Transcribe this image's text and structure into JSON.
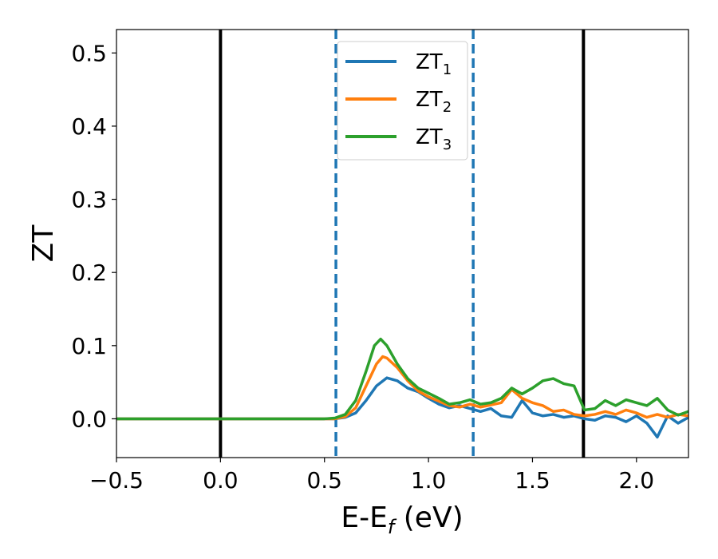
{
  "chart_data": {
    "type": "line",
    "xlabel": "E-E",
    "xlabel_sub": "f",
    "xlabel_unit": "(eV)",
    "ylabel": "ZT",
    "xlim": [
      -0.5,
      2.25
    ],
    "ylim": [
      -0.053,
      0.532
    ],
    "xticks": [
      -0.5,
      0.0,
      0.5,
      1.0,
      1.5,
      2.0
    ],
    "xtick_labels": [
      "−0.5",
      "0.0",
      "0.5",
      "1.0",
      "1.5",
      "2.0"
    ],
    "yticks": [
      0.0,
      0.1,
      0.2,
      0.3,
      0.4,
      0.5
    ],
    "ytick_labels": [
      "0.0",
      "0.1",
      "0.2",
      "0.3",
      "0.4",
      "0.5"
    ],
    "grid": false,
    "legend_position": "top-center",
    "vlines": [
      {
        "x": 0.0,
        "style": "solid",
        "color": "#000000"
      },
      {
        "x": 1.745,
        "style": "solid",
        "color": "#000000"
      },
      {
        "x": 0.555,
        "style": "dashed",
        "color": "#1f77b4"
      },
      {
        "x": 1.215,
        "style": "dashed",
        "color": "#1f77b4"
      }
    ],
    "series": [
      {
        "name": "ZT",
        "sub": "1",
        "color": "#1f77b4",
        "points": [
          [
            -0.5,
            0.0
          ],
          [
            0.5,
            0.0
          ],
          [
            0.55,
            0.0
          ],
          [
            0.6,
            0.002
          ],
          [
            0.65,
            0.008
          ],
          [
            0.7,
            0.025
          ],
          [
            0.75,
            0.045
          ],
          [
            0.8,
            0.056
          ],
          [
            0.85,
            0.052
          ],
          [
            0.9,
            0.042
          ],
          [
            0.95,
            0.037
          ],
          [
            1.0,
            0.028
          ],
          [
            1.05,
            0.02
          ],
          [
            1.1,
            0.015
          ],
          [
            1.15,
            0.018
          ],
          [
            1.2,
            0.014
          ],
          [
            1.25,
            0.01
          ],
          [
            1.3,
            0.014
          ],
          [
            1.35,
            0.004
          ],
          [
            1.4,
            0.002
          ],
          [
            1.45,
            0.025
          ],
          [
            1.5,
            0.008
          ],
          [
            1.55,
            0.004
          ],
          [
            1.6,
            0.006
          ],
          [
            1.65,
            0.002
          ],
          [
            1.7,
            0.004
          ],
          [
            1.75,
            0.0
          ],
          [
            1.8,
            -0.002
          ],
          [
            1.85,
            0.004
          ],
          [
            1.9,
            0.002
          ],
          [
            1.95,
            -0.004
          ],
          [
            2.0,
            0.004
          ],
          [
            2.05,
            -0.006
          ],
          [
            2.1,
            -0.025
          ],
          [
            2.15,
            0.004
          ],
          [
            2.2,
            -0.006
          ],
          [
            2.25,
            0.002
          ]
        ]
      },
      {
        "name": "ZT",
        "sub": "2",
        "color": "#ff7f0e",
        "points": [
          [
            -0.5,
            0.0
          ],
          [
            0.5,
            0.0
          ],
          [
            0.55,
            0.0
          ],
          [
            0.6,
            0.003
          ],
          [
            0.65,
            0.015
          ],
          [
            0.7,
            0.045
          ],
          [
            0.75,
            0.075
          ],
          [
            0.78,
            0.085
          ],
          [
            0.8,
            0.083
          ],
          [
            0.85,
            0.07
          ],
          [
            0.9,
            0.052
          ],
          [
            0.95,
            0.038
          ],
          [
            1.0,
            0.03
          ],
          [
            1.05,
            0.024
          ],
          [
            1.1,
            0.018
          ],
          [
            1.15,
            0.016
          ],
          [
            1.2,
            0.02
          ],
          [
            1.25,
            0.016
          ],
          [
            1.3,
            0.019
          ],
          [
            1.35,
            0.022
          ],
          [
            1.4,
            0.04
          ],
          [
            1.45,
            0.028
          ],
          [
            1.5,
            0.022
          ],
          [
            1.55,
            0.018
          ],
          [
            1.6,
            0.01
          ],
          [
            1.65,
            0.012
          ],
          [
            1.7,
            0.006
          ],
          [
            1.75,
            0.004
          ],
          [
            1.8,
            0.006
          ],
          [
            1.85,
            0.01
          ],
          [
            1.9,
            0.006
          ],
          [
            1.95,
            0.012
          ],
          [
            2.0,
            0.008
          ],
          [
            2.05,
            0.002
          ],
          [
            2.1,
            0.006
          ],
          [
            2.15,
            0.002
          ],
          [
            2.2,
            0.006
          ],
          [
            2.25,
            0.004
          ]
        ]
      },
      {
        "name": "ZT",
        "sub": "3",
        "color": "#2ca02c",
        "points": [
          [
            -0.5,
            0.0
          ],
          [
            0.5,
            0.0
          ],
          [
            0.55,
            0.001
          ],
          [
            0.6,
            0.006
          ],
          [
            0.65,
            0.025
          ],
          [
            0.7,
            0.065
          ],
          [
            0.74,
            0.1
          ],
          [
            0.77,
            0.109
          ],
          [
            0.8,
            0.1
          ],
          [
            0.85,
            0.075
          ],
          [
            0.9,
            0.055
          ],
          [
            0.95,
            0.042
          ],
          [
            1.0,
            0.035
          ],
          [
            1.05,
            0.028
          ],
          [
            1.1,
            0.02
          ],
          [
            1.15,
            0.022
          ],
          [
            1.2,
            0.026
          ],
          [
            1.25,
            0.02
          ],
          [
            1.3,
            0.022
          ],
          [
            1.35,
            0.028
          ],
          [
            1.4,
            0.042
          ],
          [
            1.45,
            0.034
          ],
          [
            1.5,
            0.042
          ],
          [
            1.55,
            0.052
          ],
          [
            1.6,
            0.055
          ],
          [
            1.65,
            0.048
          ],
          [
            1.7,
            0.045
          ],
          [
            1.75,
            0.012
          ],
          [
            1.8,
            0.014
          ],
          [
            1.85,
            0.025
          ],
          [
            1.9,
            0.018
          ],
          [
            1.95,
            0.026
          ],
          [
            2.0,
            0.022
          ],
          [
            2.05,
            0.018
          ],
          [
            2.1,
            0.028
          ],
          [
            2.15,
            0.012
          ],
          [
            2.2,
            0.005
          ],
          [
            2.25,
            0.01
          ]
        ]
      }
    ]
  }
}
